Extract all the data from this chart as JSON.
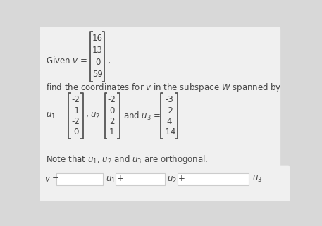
{
  "background_color": "#d8d8d8",
  "white_blob_color": "#f0f0f0",
  "text_color": "#444444",
  "input_box_color": "#ffffff",
  "input_box_edge": "#cccccc",
  "given_v": [
    "16",
    "13",
    "0",
    "59"
  ],
  "u1": [
    "-2",
    "-1",
    "-2",
    "0"
  ],
  "u2": [
    "-2",
    "0",
    "2",
    "1"
  ],
  "u3": [
    "-3",
    "-2",
    "4",
    "-14"
  ],
  "given_text": "Given $v$ =",
  "line1": "find the coordinates for $v$ in the subspace $W$ spanned by",
  "u1_label": "$u_1$ =",
  "u2_label": ", $u_2$ =",
  "u3_label": "and $u_3$ =",
  "line2": "Note that $u_1$, $u_2$ and $u_3$ are orthogonal.",
  "bottom_v": "$v$ =",
  "bottom_u1": "$u_1+$",
  "bottom_u2": "$u_2+$",
  "bottom_u3": "$u_3$",
  "bracket_color": "#555555",
  "fs_main": 8.5,
  "fs_small": 8.0
}
